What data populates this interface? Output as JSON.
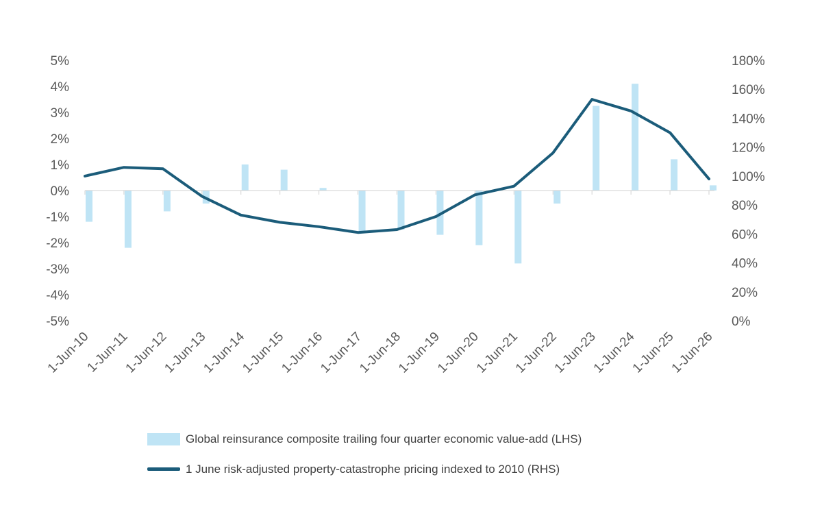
{
  "chart_data": {
    "type": "bar+line",
    "categories": [
      "1-Jun-10",
      "1-Jun-11",
      "1-Jun-12",
      "1-Jun-13",
      "1-Jun-14",
      "1-Jun-15",
      "1-Jun-16",
      "1-Jun-17",
      "1-Jun-18",
      "1-Jun-19",
      "1-Jun-20",
      "1-Jun-21",
      "1-Jun-22",
      "1-Jun-23",
      "1-Jun-24",
      "1-Jun-25",
      "1-Jun-26"
    ],
    "left_axis": {
      "ylim": [
        -5,
        5
      ],
      "ticks": [
        "5%",
        "4%",
        "3%",
        "2%",
        "1%",
        "0%",
        "-1%",
        "-2%",
        "-3%",
        "-4%",
        "-5%"
      ]
    },
    "right_axis": {
      "ylim": [
        0,
        180
      ],
      "ticks": [
        "180%",
        "160%",
        "140%",
        "120%",
        "100%",
        "80%",
        "60%",
        "40%",
        "20%",
        "0%"
      ]
    },
    "series": [
      {
        "name": "Global reinsurance composite trailing four quarter economic value-add (LHS)",
        "type": "bar",
        "axis": "left",
        "color": "#bfe4f5",
        "values": [
          -1.2,
          -2.2,
          -0.8,
          -0.5,
          1.0,
          0.8,
          0.1,
          -1.6,
          -1.5,
          -1.7,
          -2.1,
          -2.8,
          -0.5,
          3.25,
          4.1,
          1.2,
          0.2
        ]
      },
      {
        "name": "1 June risk-adjusted property-catastrophe pricing indexed to 2010 (RHS)",
        "type": "line",
        "axis": "right",
        "color": "#1b5c7a",
        "values": [
          100,
          106,
          105,
          86,
          73,
          68,
          65,
          61,
          63,
          72,
          87,
          93,
          116,
          153,
          145,
          130,
          98
        ]
      }
    ],
    "grid": false,
    "legend_position": "bottom"
  }
}
